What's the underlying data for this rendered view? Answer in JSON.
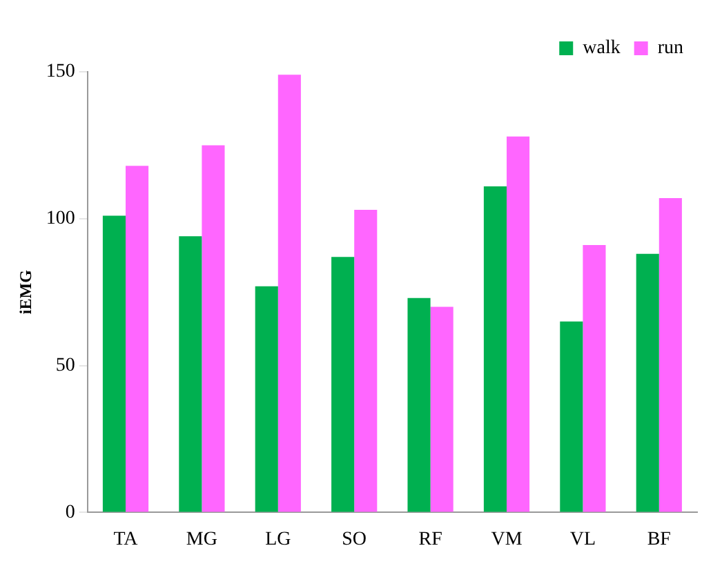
{
  "chart_data": {
    "type": "bar",
    "ylabel": "iEMG",
    "categories": [
      "TA",
      "MG",
      "LG",
      "SO",
      "RF",
      "VM",
      "VL",
      "BF"
    ],
    "series": [
      {
        "name": "walk",
        "color": "#00b050",
        "values": [
          101,
          94,
          77,
          87,
          73,
          111,
          65,
          88
        ]
      },
      {
        "name": "run",
        "color": "#ff66ff",
        "values": [
          118,
          125,
          149,
          103,
          70,
          128,
          91,
          107
        ]
      }
    ],
    "ylim": [
      0,
      150
    ],
    "yticks": [
      0,
      50,
      100,
      150
    ],
    "grid": false,
    "legend": "top right"
  }
}
